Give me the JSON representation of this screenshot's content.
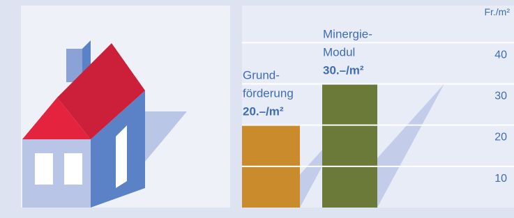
{
  "chart_data": {
    "type": "bar",
    "unit_label": "Fr./m²",
    "categories": [
      [
        "Grund-",
        "förderung"
      ],
      [
        "Minergie-",
        "Modul"
      ]
    ],
    "values": [
      20,
      30
    ],
    "value_labels": [
      "20.–/m²",
      "30.–/m²"
    ],
    "colors": [
      "#c98b2b",
      "#6b7a39"
    ],
    "ylim": [
      0,
      49
    ],
    "yticks": [
      10,
      20,
      30,
      40
    ],
    "grid": true
  }
}
